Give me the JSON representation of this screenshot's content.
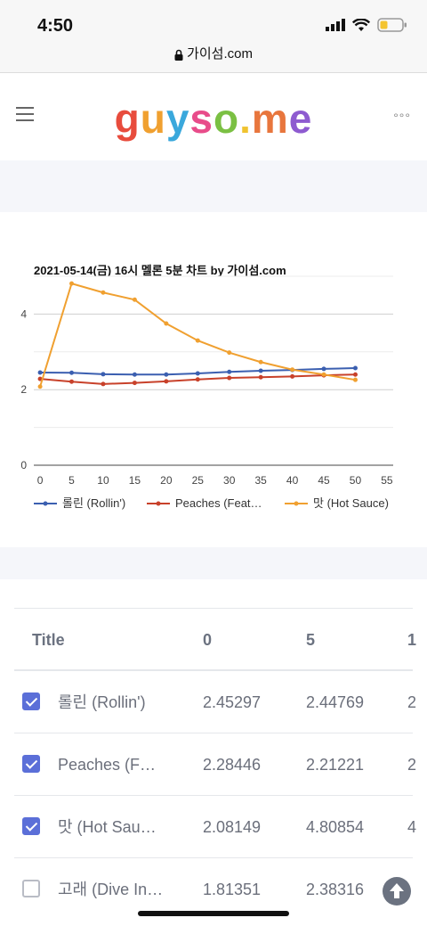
{
  "status": {
    "time": "4:50"
  },
  "browser": {
    "url": "가이섬.com"
  },
  "header": {
    "logo_letters": [
      {
        "ch": "g",
        "color": "#e84c3d"
      },
      {
        "ch": "u",
        "color": "#f0a030"
      },
      {
        "ch": "y",
        "color": "#3aa8dc"
      },
      {
        "ch": "s",
        "color": "#e84c8a"
      },
      {
        "ch": "o",
        "color": "#7bc043"
      },
      {
        "ch": ".",
        "color": "#f0c330"
      },
      {
        "ch": "m",
        "color": "#e8763d"
      },
      {
        "ch": "e",
        "color": "#8e5bd0"
      }
    ],
    "more_label": "°°°"
  },
  "chart_data": {
    "type": "line",
    "title": "2021-05-14(금) 16시 멜론 5분 차트 by 가이섬.com",
    "x": [
      0,
      5,
      10,
      15,
      20,
      25,
      30,
      35,
      40,
      45,
      50
    ],
    "x_ticks": [
      "0",
      "5",
      "10",
      "15",
      "20",
      "25",
      "30",
      "35",
      "40",
      "45",
      "50",
      "55"
    ],
    "y_ticks": [
      "0",
      "2",
      "4"
    ],
    "xlim": [
      -1,
      56
    ],
    "ylim": [
      0,
      5.0
    ],
    "grid": true,
    "legend_position": "bottom",
    "series": [
      {
        "name": "롤린 (Rollin')",
        "color": "#3b5fb0",
        "values": [
          2.45297,
          2.44769,
          2.41,
          2.4,
          2.4,
          2.43,
          2.47,
          2.5,
          2.52,
          2.55,
          2.57
        ]
      },
      {
        "name": "Peaches (Feat…",
        "color": "#c8412a",
        "values": [
          2.28446,
          2.21221,
          2.15,
          2.18,
          2.22,
          2.27,
          2.31,
          2.33,
          2.35,
          2.38,
          2.4
        ]
      },
      {
        "name": "맛 (Hot Sauce)",
        "color": "#f0a030",
        "values": [
          2.08149,
          4.80854,
          4.57,
          4.38,
          3.75,
          3.3,
          2.98,
          2.73,
          2.53,
          2.4,
          2.26
        ]
      }
    ]
  },
  "table": {
    "headers": {
      "title": "Title",
      "v0": "0",
      "v5": "5",
      "v10": "1"
    },
    "rows": [
      {
        "checked": true,
        "name": "롤린 (Rollin')",
        "v0": "2.45297",
        "v5": "2.44769",
        "v10": "2"
      },
      {
        "checked": true,
        "name": "Peaches (F…",
        "v0": "2.28446",
        "v5": "2.21221",
        "v10": "2"
      },
      {
        "checked": true,
        "name": "맛 (Hot Sau…",
        "v0": "2.08149",
        "v5": "4.80854",
        "v10": "4"
      },
      {
        "checked": false,
        "name": "고래 (Dive In…",
        "v0": "1.81351",
        "v5": "2.38316",
        "v10": ""
      }
    ]
  },
  "icons": {
    "menu": "hamburger-icon",
    "more": "more-dots-icon",
    "scroll_top": "arrow-up-icon",
    "lock": "lock-icon"
  }
}
